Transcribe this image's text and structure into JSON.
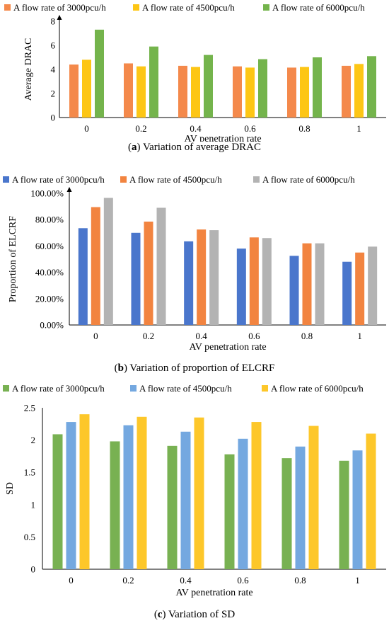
{
  "chart_data": [
    {
      "type": "bar",
      "caption_letter": "a",
      "caption_text": "Variation of average DRAC",
      "xlabel": "AV penetration rate",
      "ylabel": "Average DRAC",
      "categories": [
        "0",
        "0.2",
        "0.4",
        "0.6",
        "0.8",
        "1"
      ],
      "ylim": [
        0,
        8
      ],
      "yticks": [
        "0",
        "2",
        "4",
        "6",
        "8"
      ],
      "legend_position": "top",
      "series": [
        {
          "name": "A flow rate of 3000pcu/h",
          "color": "#f4894b",
          "values": [
            4.4,
            4.5,
            4.3,
            4.25,
            4.15,
            4.3
          ]
        },
        {
          "name": "A flow rate of 4500pcu/h",
          "color": "#fdc615",
          "values": [
            4.8,
            4.25,
            4.2,
            4.15,
            4.2,
            4.45
          ]
        },
        {
          "name": "A flow rate of 6000pcu/h",
          "color": "#74b44c",
          "values": [
            7.3,
            5.9,
            5.2,
            4.85,
            5.0,
            5.1
          ]
        }
      ]
    },
    {
      "type": "bar",
      "caption_letter": "b",
      "caption_text": "Variation of proportion of ELCRF",
      "xlabel": "AV penetration rate",
      "ylabel": "Proportion of ELCRF",
      "categories": [
        "0",
        "0.2",
        "0.4",
        "0.6",
        "0.8",
        "1"
      ],
      "ylim": [
        0,
        100
      ],
      "yticks": [
        "0.00%",
        "20.00%",
        "40.00%",
        "60.00%",
        "80.00%",
        "100.00%"
      ],
      "legend_position": "top",
      "series": [
        {
          "name": "A flow rate of 3000pcu/h",
          "color": "#4a76cc",
          "values": [
            73.5,
            70.0,
            63.5,
            58.0,
            52.5,
            48.0
          ]
        },
        {
          "name": "A flow rate of 4500pcu/h",
          "color": "#f28440",
          "values": [
            89.5,
            78.5,
            72.5,
            66.5,
            62.0,
            55.0
          ]
        },
        {
          "name": "A flow rate of 6000pcu/h",
          "color": "#b3b3b3",
          "values": [
            96.5,
            89.0,
            72.0,
            66.0,
            62.0,
            59.5
          ]
        }
      ]
    },
    {
      "type": "bar",
      "caption_letter": "c",
      "caption_text": "Variation of SD",
      "xlabel": "AV penetration rate",
      "ylabel": "SD",
      "categories": [
        "0",
        "0.2",
        "0.4",
        "0.6",
        "0.8",
        "1"
      ],
      "ylim": [
        0,
        2.5
      ],
      "yticks": [
        "0",
        "0.5",
        "1",
        "1.5",
        "2",
        "2.5"
      ],
      "legend_position": "top",
      "series": [
        {
          "name": "A flow rate of 3000pcu/h",
          "color": "#78b152",
          "values": [
            2.09,
            1.98,
            1.91,
            1.78,
            1.72,
            1.68
          ]
        },
        {
          "name": "A flow rate of 4500pcu/h",
          "color": "#74a8e0",
          "values": [
            2.28,
            2.23,
            2.13,
            2.02,
            1.9,
            1.84
          ]
        },
        {
          "name": "A flow rate of 6000pcu/h",
          "color": "#fdc72a",
          "values": [
            2.4,
            2.36,
            2.35,
            2.28,
            2.22,
            2.1
          ]
        }
      ]
    }
  ]
}
